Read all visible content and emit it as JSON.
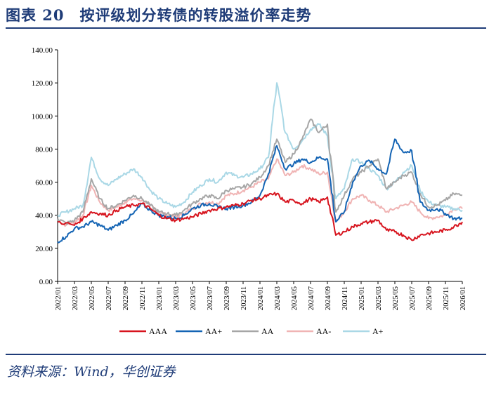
{
  "figure": {
    "title": "图表 20　按评级划分转债的转股溢价率走势",
    "source": "资料来源：Wind，华创证券"
  },
  "chart_data": {
    "type": "line",
    "title": "",
    "xlabel": "",
    "ylabel": "",
    "ylim": [
      0,
      140
    ],
    "yticks": [
      "0.00",
      "20.00",
      "40.00",
      "60.00",
      "80.00",
      "100.00",
      "120.00",
      "140.00"
    ],
    "x_range": [
      "2022/01",
      "2026/01"
    ],
    "xticks": [
      "2022/01",
      "2022/03",
      "2022/05",
      "2022/07",
      "2022/09",
      "2022/11",
      "2023/01",
      "2023/03",
      "2023/05",
      "2023/07",
      "2023/09",
      "2023/11",
      "2024/01",
      "2024/03",
      "2024/05",
      "2024/07",
      "2024/09",
      "2024/11",
      "2025/01",
      "2025/03",
      "2025/05",
      "2025/07",
      "2025/09",
      "2025/11",
      "2026/01"
    ],
    "grid": false,
    "legend_position": "bottom",
    "series": [
      {
        "name": "AAA",
        "color": "#d7141e",
        "x": [
          "2022/01",
          "2022/03",
          "2022/04",
          "2022/05",
          "2022/06",
          "2022/07",
          "2022/08",
          "2022/09",
          "2022/10",
          "2022/11",
          "2022/12",
          "2023/01",
          "2023/02",
          "2023/03",
          "2023/04",
          "2023/05",
          "2023/06",
          "2023/07",
          "2023/08",
          "2023/09",
          "2023/10",
          "2023/11",
          "2023/12",
          "2024/01",
          "2024/02",
          "2024/03",
          "2024/04",
          "2024/05",
          "2024/06",
          "2024/07",
          "2024/08",
          "2024/09",
          "2024/10",
          "2024/11",
          "2024/12",
          "2025/01",
          "2025/02",
          "2025/03",
          "2025/04",
          "2025/05",
          "2025/06",
          "2025/07",
          "2025/08",
          "2025/09",
          "2025/10",
          "2025/11",
          "2025/12",
          "2026/01"
        ],
        "y": [
          36,
          34,
          38,
          42,
          41,
          40,
          43,
          45,
          46,
          47,
          44,
          40,
          38,
          37,
          38,
          39,
          41,
          43,
          44,
          45,
          46,
          47,
          49,
          50,
          52,
          53,
          48,
          49,
          47,
          50,
          48,
          51,
          28,
          30,
          33,
          35,
          36,
          37,
          31,
          30,
          28,
          25,
          28,
          29,
          30,
          31,
          33,
          36
        ]
      },
      {
        "name": "AA+",
        "color": "#1464b4",
        "x": [
          "2022/01",
          "2022/02",
          "2022/03",
          "2022/04",
          "2022/05",
          "2022/06",
          "2022/07",
          "2022/08",
          "2022/09",
          "2022/10",
          "2022/11",
          "2022/12",
          "2023/01",
          "2023/02",
          "2023/03",
          "2023/04",
          "2023/05",
          "2023/06",
          "2023/07",
          "2023/08",
          "2023/09",
          "2023/10",
          "2023/11",
          "2023/12",
          "2024/01",
          "2024/02",
          "2024/03",
          "2024/04",
          "2024/05",
          "2024/06",
          "2024/07",
          "2024/08",
          "2024/09",
          "2024/10",
          "2024/11",
          "2024/12",
          "2025/01",
          "2025/02",
          "2025/03",
          "2025/04",
          "2025/05",
          "2025/06",
          "2025/07",
          "2025/08",
          "2025/09",
          "2025/10",
          "2025/11",
          "2025/12",
          "2026/01"
        ],
        "y": [
          24,
          27,
          32,
          33,
          36,
          34,
          31,
          34,
          37,
          41,
          47,
          43,
          40,
          39,
          38,
          40,
          44,
          46,
          47,
          45,
          44,
          45,
          46,
          48,
          52,
          65,
          82,
          68,
          71,
          74,
          72,
          75,
          74,
          36,
          42,
          60,
          70,
          73,
          68,
          65,
          86,
          78,
          79,
          48,
          43,
          44,
          41,
          38,
          38
        ]
      },
      {
        "name": "AA",
        "color": "#a6a6a6",
        "x": [
          "2022/01",
          "2022/02",
          "2022/03",
          "2022/04",
          "2022/05",
          "2022/06",
          "2022/07",
          "2022/08",
          "2022/09",
          "2022/10",
          "2022/11",
          "2022/12",
          "2023/01",
          "2023/02",
          "2023/03",
          "2023/04",
          "2023/05",
          "2023/06",
          "2023/07",
          "2023/08",
          "2023/09",
          "2023/10",
          "2023/11",
          "2023/12",
          "2024/01",
          "2024/02",
          "2024/03",
          "2024/04",
          "2024/05",
          "2024/06",
          "2024/07",
          "2024/08",
          "2024/09",
          "2024/10",
          "2024/11",
          "2024/12",
          "2025/01",
          "2025/02",
          "2025/03",
          "2025/04",
          "2025/05",
          "2025/06",
          "2025/07",
          "2025/08",
          "2025/09",
          "2025/10",
          "2025/11",
          "2025/12",
          "2026/01"
        ],
        "y": [
          38,
          35,
          37,
          42,
          62,
          50,
          44,
          46,
          49,
          52,
          50,
          46,
          42,
          41,
          40,
          43,
          47,
          50,
          52,
          50,
          55,
          56,
          57,
          59,
          63,
          70,
          86,
          72,
          77,
          86,
          98,
          90,
          95,
          42,
          52,
          62,
          66,
          70,
          74,
          56,
          60,
          64,
          66,
          53,
          45,
          46,
          49,
          53,
          52
        ]
      },
      {
        "name": "AA-",
        "color": "#f0b4b4",
        "x": [
          "2022/01",
          "2022/02",
          "2022/03",
          "2022/04",
          "2022/05",
          "2022/06",
          "2022/07",
          "2022/08",
          "2022/09",
          "2022/10",
          "2022/11",
          "2022/12",
          "2023/01",
          "2023/02",
          "2023/03",
          "2023/04",
          "2023/05",
          "2023/06",
          "2023/07",
          "2023/08",
          "2023/09",
          "2023/10",
          "2023/11",
          "2023/12",
          "2024/01",
          "2024/02",
          "2024/03",
          "2024/04",
          "2024/05",
          "2024/06",
          "2024/07",
          "2024/08",
          "2024/09",
          "2024/10",
          "2024/11",
          "2024/12",
          "2025/01",
          "2025/02",
          "2025/03",
          "2025/04",
          "2025/05",
          "2025/06",
          "2025/07",
          "2025/08",
          "2025/09",
          "2025/10",
          "2025/11",
          "2025/12",
          "2026/01"
        ],
        "y": [
          37,
          34,
          36,
          40,
          58,
          48,
          43,
          45,
          48,
          50,
          49,
          46,
          42,
          40,
          39,
          41,
          44,
          47,
          48,
          47,
          52,
          53,
          55,
          57,
          60,
          62,
          74,
          64,
          66,
          70,
          68,
          65,
          66,
          36,
          42,
          50,
          52,
          49,
          46,
          42,
          44,
          46,
          48,
          42,
          38,
          39,
          40,
          44,
          44
        ]
      },
      {
        "name": "A+",
        "color": "#aad8e6",
        "x": [
          "2022/01",
          "2022/02",
          "2022/03",
          "2022/04",
          "2022/05",
          "2022/06",
          "2022/07",
          "2022/08",
          "2022/09",
          "2022/10",
          "2022/11",
          "2022/12",
          "2023/01",
          "2023/02",
          "2023/03",
          "2023/04",
          "2023/05",
          "2023/06",
          "2023/07",
          "2023/08",
          "2023/09",
          "2023/10",
          "2023/11",
          "2023/12",
          "2024/01",
          "2024/02",
          "2024/03",
          "2024/04",
          "2024/05",
          "2024/06",
          "2024/07",
          "2024/08",
          "2024/09",
          "2024/10",
          "2024/11",
          "2024/12",
          "2025/01",
          "2025/02",
          "2025/03",
          "2025/04",
          "2025/05",
          "2025/06",
          "2025/07",
          "2025/08",
          "2025/09",
          "2025/10",
          "2025/11",
          "2025/12",
          "2026/01"
        ],
        "y": [
          40,
          42,
          44,
          46,
          75,
          62,
          58,
          62,
          65,
          68,
          63,
          55,
          50,
          47,
          45,
          48,
          54,
          58,
          62,
          60,
          66,
          64,
          63,
          65,
          68,
          75,
          120,
          90,
          80,
          85,
          92,
          95,
          88,
          50,
          56,
          74,
          72,
          68,
          64,
          56,
          60,
          66,
          70,
          55,
          48,
          46,
          45,
          44,
          43
        ]
      }
    ]
  }
}
